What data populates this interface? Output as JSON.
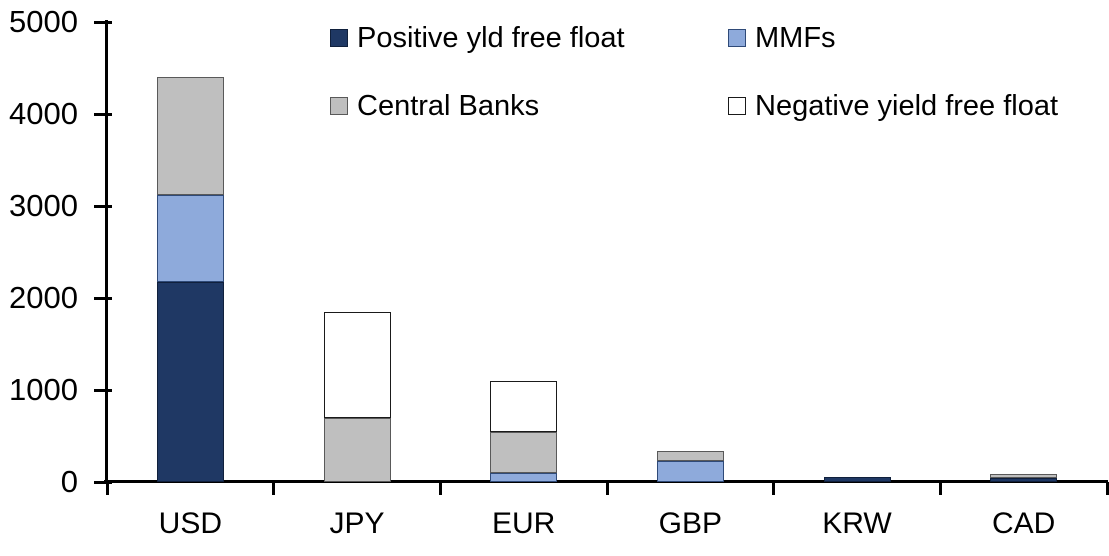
{
  "chart_data": {
    "type": "bar",
    "stacked": true,
    "title": "",
    "xlabel": "",
    "ylabel": "",
    "grid": false,
    "legend_position": "top",
    "categories": [
      "USD",
      "JPY",
      "EUR",
      "GBP",
      "KRW",
      "CAD"
    ],
    "series": [
      {
        "name": "Positive yld free float",
        "color": "#1F3864",
        "border": "#10203C",
        "values": [
          2170,
          0,
          0,
          0,
          50,
          45
        ]
      },
      {
        "name": "MMFs",
        "color": "#8EAADB",
        "border": "#2F4A78",
        "values": [
          950,
          0,
          100,
          230,
          0,
          0
        ]
      },
      {
        "name": "Central Banks",
        "color": "#BFBFBF",
        "border": "#595959",
        "values": [
          1280,
          700,
          440,
          110,
          0,
          40
        ]
      },
      {
        "name": "Negative yield free float",
        "color": "#FFFFFF",
        "border": "#1A1A1A",
        "values": [
          0,
          1150,
          560,
          0,
          0,
          0
        ]
      }
    ],
    "y_axis": {
      "min": 0,
      "max": 5000,
      "step": 1000,
      "tick_labels": [
        "0",
        "1000",
        "2000",
        "3000",
        "4000",
        "5000"
      ]
    }
  }
}
